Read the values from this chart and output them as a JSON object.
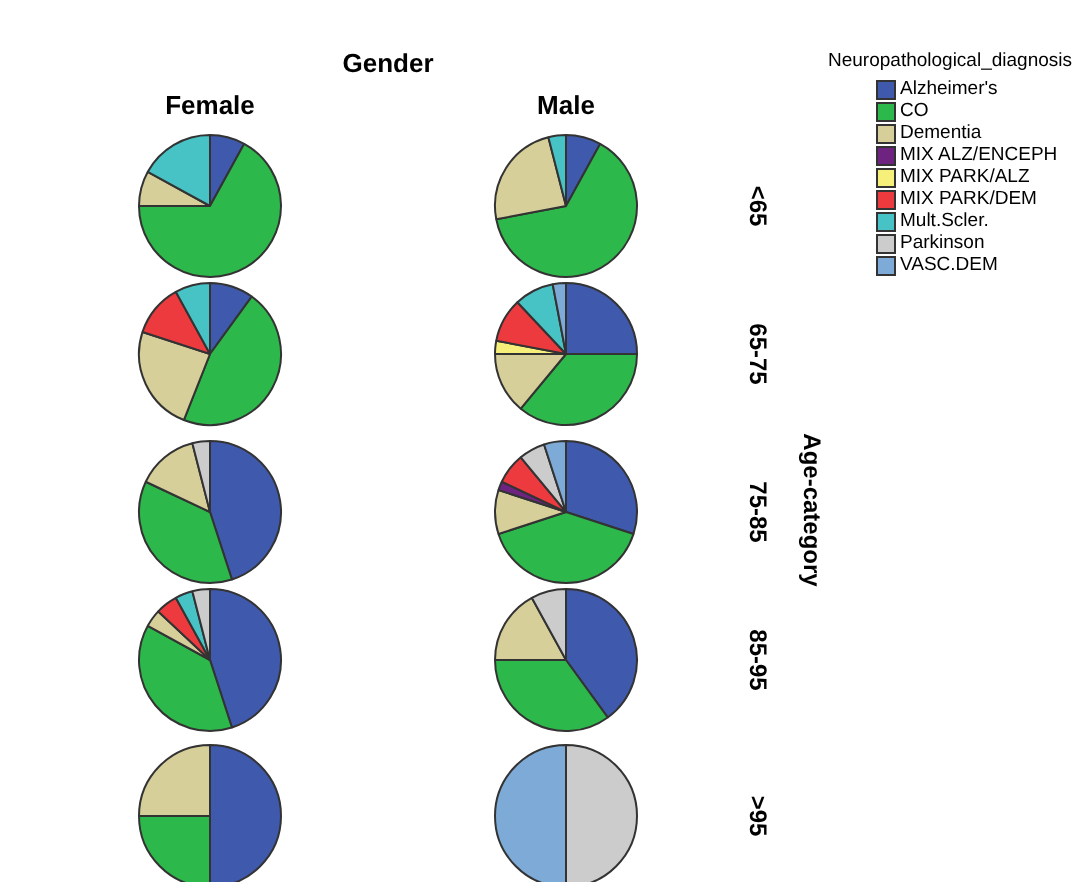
{
  "chart_data": [
    {
      "type": "pie",
      "title": "Female",
      "annotations": [
        "Gender",
        "Age-category"
      ],
      "categories": [
        null,
        null,
        null,
        null,
        null,
        null,
        null,
        null,
        null
      ],
      "colors": [
        "#3f59ad",
        "#2db84b",
        "#d6cf9a",
        "#6d237f",
        "#f6f07a",
        "#ec3a3f",
        "#47c3c6",
        "#cccccc",
        "#7daad6"
      ],
      "values": [
        8,
        67,
        8,
        0,
        0,
        0,
        17,
        0,
        0
      ]
    },
    {
      "type": "pie",
      "title": "Male",
      "y2label": "<65",
      "legend": "right",
      "legend_title": "Neuropathological_diagnosis",
      "categories": [
        "Alzheimer's",
        "CO",
        "Dementia",
        "MIX ALZ/ENCEPH",
        "MIX PARK/ALZ",
        "MIX PARK/DEM",
        "Mult.Scler.",
        "Parkinson",
        "VASC.DEM"
      ],
      "colors": [
        "#3f59ad",
        "#2db84b",
        "#d6cf9a",
        "#6d237f",
        "#f6f07a",
        "#ec3a3f",
        "#47c3c6",
        "#cccccc",
        "#7daad6"
      ],
      "values": [
        8,
        64,
        24,
        0,
        0,
        0,
        4,
        0,
        0
      ]
    },
    {
      "type": "pie",
      "categories": [
        null,
        null,
        null,
        null,
        null,
        null,
        null,
        null,
        null
      ],
      "colors": [
        "#3f59ad",
        "#2db84b",
        "#d6cf9a",
        "#6d237f",
        "#f6f07a",
        "#ec3a3f",
        "#47c3c6",
        "#cccccc",
        "#7daad6"
      ],
      "values": [
        10,
        46,
        24,
        0,
        0,
        12,
        8,
        0,
        0
      ]
    },
    {
      "type": "pie",
      "y2label": "65-75",
      "categories": [
        null,
        null,
        null,
        null,
        null,
        null,
        null,
        null,
        null
      ],
      "colors": [
        "#3f59ad",
        "#2db84b",
        "#d6cf9a",
        "#6d237f",
        "#f6f07a",
        "#ec3a3f",
        "#47c3c6",
        "#cccccc",
        "#7daad6"
      ],
      "values": [
        25,
        36,
        14,
        0,
        3,
        10,
        9,
        0,
        3
      ]
    },
    {
      "type": "pie",
      "categories": [
        null,
        null,
        null,
        null,
        null,
        null,
        null,
        null,
        null
      ],
      "colors": [
        "#3f59ad",
        "#2db84b",
        "#d6cf9a",
        "#6d237f",
        "#f6f07a",
        "#ec3a3f",
        "#47c3c6",
        "#cccccc",
        "#7daad6"
      ],
      "values": [
        45,
        37,
        14,
        0,
        0,
        0,
        0,
        4,
        0
      ]
    },
    {
      "type": "pie",
      "y2label": "75-85",
      "categories": [
        null,
        null,
        null,
        null,
        null,
        null,
        null,
        null,
        null
      ],
      "colors": [
        "#3f59ad",
        "#2db84b",
        "#d6cf9a",
        "#6d237f",
        "#f6f07a",
        "#ec3a3f",
        "#47c3c6",
        "#cccccc",
        "#7daad6"
      ],
      "values": [
        30,
        40,
        10,
        2,
        0,
        7,
        0,
        6,
        5
      ]
    },
    {
      "type": "pie",
      "categories": [
        null,
        null,
        null,
        null,
        null,
        null,
        null,
        null,
        null
      ],
      "colors": [
        "#3f59ad",
        "#2db84b",
        "#d6cf9a",
        "#6d237f",
        "#f6f07a",
        "#ec3a3f",
        "#47c3c6",
        "#cccccc",
        "#7daad6"
      ],
      "values": [
        45,
        38,
        4,
        0,
        0,
        5,
        4,
        4,
        0
      ]
    },
    {
      "type": "pie",
      "y2label": "85-95",
      "categories": [
        null,
        null,
        null,
        null,
        null,
        null,
        null,
        null,
        null
      ],
      "colors": [
        "#3f59ad",
        "#2db84b",
        "#d6cf9a",
        "#6d237f",
        "#f6f07a",
        "#ec3a3f",
        "#47c3c6",
        "#cccccc",
        "#7daad6"
      ],
      "values": [
        40,
        35,
        17,
        0,
        0,
        0,
        0,
        8,
        0
      ]
    },
    {
      "type": "pie",
      "categories": [
        null,
        null,
        null,
        null,
        null,
        null,
        null,
        null,
        null
      ],
      "colors": [
        "#3f59ad",
        "#2db84b",
        "#d6cf9a",
        "#6d237f",
        "#f6f07a",
        "#ec3a3f",
        "#47c3c6",
        "#cccccc",
        "#7daad6"
      ],
      "values": [
        50,
        25,
        25,
        0,
        0,
        0,
        0,
        0,
        0
      ]
    },
    {
      "type": "pie",
      "y2label": ">95",
      "categories": [
        null,
        null,
        null,
        null,
        null,
        null,
        null,
        null,
        null
      ],
      "colors": [
        "#3f59ad",
        "#2db84b",
        "#d6cf9a",
        "#6d237f",
        "#f6f07a",
        "#ec3a3f",
        "#47c3c6",
        "#cccccc",
        "#7daad6"
      ],
      "values": [
        0,
        0,
        0,
        0,
        0,
        0,
        0,
        50,
        50
      ]
    }
  ]
}
